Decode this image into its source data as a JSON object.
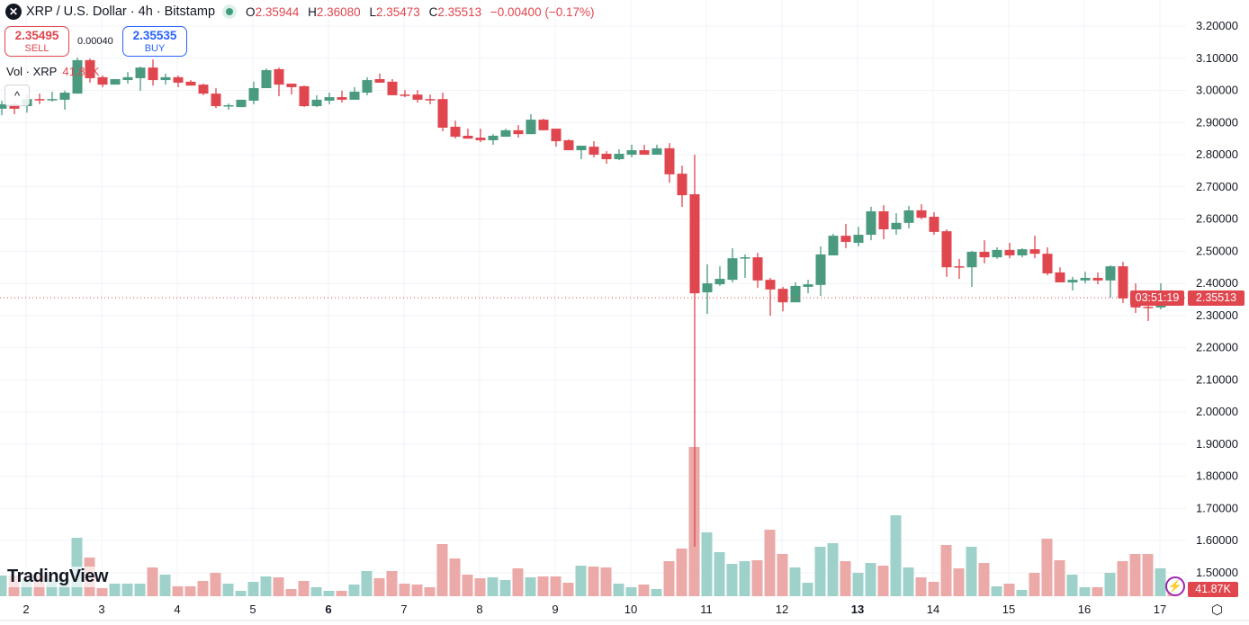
{
  "header": {
    "symbol": "XRP / U.S. Dollar · 4h · Bitstamp",
    "o_label": "O",
    "o": "2.35944",
    "h_label": "H",
    "h": "2.36080",
    "l_label": "L",
    "l": "2.35473",
    "c_label": "C",
    "c": "2.35513",
    "change": "−0.00400 (−0.17%)",
    "logo_icon": "xrp-logo-icon"
  },
  "trade": {
    "sell_price": "2.35495",
    "sell_label": "SELL",
    "spread": "0.00040",
    "buy_price": "2.35535",
    "buy_label": "BUY"
  },
  "volume_legend": {
    "label": "Vol · XRP",
    "value": "41.87K"
  },
  "collapse_glyph": "^",
  "brand": "TradingView",
  "last_price": {
    "price": "2.35513",
    "countdown": "03:51:19"
  },
  "last_volume": "41.87K",
  "colors": {
    "up": "#4a9a80",
    "down": "#e0464e",
    "vol_up": "#9fd1cb",
    "vol_down": "#eba9a8"
  },
  "chart_data": {
    "type": "candlestick",
    "title": "XRP / U.S. Dollar · 4h · Bitstamp",
    "ylim": [
      1.5,
      3.2
    ],
    "y_ticks": [
      "3.20000",
      "3.10000",
      "3.00000",
      "2.90000",
      "2.80000",
      "2.70000",
      "2.60000",
      "2.50000",
      "2.40000",
      "2.30000",
      "2.20000",
      "2.10000",
      "2.00000",
      "1.90000",
      "1.80000",
      "1.70000",
      "1.60000",
      "1.50000"
    ],
    "x_ticks": [
      {
        "label": "2",
        "bold": false
      },
      {
        "label": "3",
        "bold": false
      },
      {
        "label": "4",
        "bold": false
      },
      {
        "label": "5",
        "bold": false
      },
      {
        "label": "6",
        "bold": true
      },
      {
        "label": "7",
        "bold": false
      },
      {
        "label": "8",
        "bold": false
      },
      {
        "label": "9",
        "bold": false
      },
      {
        "label": "10",
        "bold": false
      },
      {
        "label": "11",
        "bold": false
      },
      {
        "label": "12",
        "bold": false
      },
      {
        "label": "13",
        "bold": true
      },
      {
        "label": "14",
        "bold": false
      },
      {
        "label": "15",
        "bold": false
      },
      {
        "label": "16",
        "bold": false
      },
      {
        "label": "17",
        "bold": false
      }
    ],
    "candles_per_day": 6,
    "first_day_candle_index": 2,
    "ohlc_fields": [
      "open",
      "high",
      "low",
      "close"
    ],
    "candles": [
      [
        2.943,
        2.968,
        2.923,
        2.957
      ],
      [
        2.957,
        2.965,
        2.926,
        2.943
      ],
      [
        2.951,
        2.987,
        2.931,
        2.973
      ],
      [
        2.973,
        2.99,
        2.957,
        2.971
      ],
      [
        2.971,
        2.996,
        2.965,
        2.973
      ],
      [
        2.971,
        2.999,
        2.94,
        2.993
      ],
      [
        2.99,
        3.102,
        2.99,
        3.094
      ],
      [
        3.094,
        3.099,
        3.024,
        3.038
      ],
      [
        3.041,
        3.046,
        3.01,
        3.018
      ],
      [
        3.018,
        3.035,
        3.018,
        3.035
      ],
      [
        3.032,
        3.057,
        3.021,
        3.041
      ],
      [
        3.038,
        3.074,
        2.999,
        3.071
      ],
      [
        3.071,
        3.096,
        3.015,
        3.032
      ],
      [
        3.032,
        3.052,
        3.018,
        3.041
      ],
      [
        3.041,
        3.046,
        3.01,
        3.024
      ],
      [
        3.027,
        3.032,
        3.015,
        3.015
      ],
      [
        3.018,
        3.021,
        2.985,
        2.99
      ],
      [
        2.99,
        3.007,
        2.945,
        2.951
      ],
      [
        2.951,
        2.959,
        2.94,
        2.954
      ],
      [
        2.948,
        2.959,
        2.948,
        2.971
      ],
      [
        2.968,
        3.027,
        2.957,
        3.007
      ],
      [
        3.007,
        3.068,
        3.007,
        3.063
      ],
      [
        3.066,
        3.071,
        2.982,
        3.018
      ],
      [
        3.021,
        3.021,
        2.987,
        3.01
      ],
      [
        3.013,
        3.015,
        2.948,
        2.951
      ],
      [
        2.951,
        2.985,
        2.948,
        2.971
      ],
      [
        2.968,
        2.993,
        2.957,
        2.979
      ],
      [
        2.979,
        2.999,
        2.962,
        2.971
      ],
      [
        2.971,
        3.01,
        2.971,
        2.996
      ],
      [
        2.993,
        3.041,
        2.985,
        3.032
      ],
      [
        3.035,
        3.052,
        3.024,
        3.024
      ],
      [
        3.027,
        3.035,
        2.985,
        2.985
      ],
      [
        2.987,
        3.001,
        2.979,
        2.985
      ],
      [
        2.987,
        3.001,
        2.962,
        2.971
      ],
      [
        2.973,
        2.987,
        2.957,
        2.971
      ],
      [
        2.973,
        2.993,
        2.873,
        2.884
      ],
      [
        2.887,
        2.906,
        2.85,
        2.856
      ],
      [
        2.859,
        2.881,
        2.85,
        2.85
      ],
      [
        2.853,
        2.881,
        2.839,
        2.845
      ],
      [
        2.845,
        2.864,
        2.831,
        2.859
      ],
      [
        2.856,
        2.881,
        2.856,
        2.876
      ],
      [
        2.876,
        2.892,
        2.853,
        2.864
      ],
      [
        2.864,
        2.926,
        2.864,
        2.909
      ],
      [
        2.909,
        2.912,
        2.876,
        2.876
      ],
      [
        2.881,
        2.881,
        2.825,
        2.842
      ],
      [
        2.845,
        2.848,
        2.814,
        2.814
      ],
      [
        2.814,
        2.828,
        2.786,
        2.828
      ],
      [
        2.825,
        2.842,
        2.792,
        2.8
      ],
      [
        2.803,
        2.811,
        2.772,
        2.786
      ],
      [
        2.786,
        2.817,
        2.783,
        2.803
      ],
      [
        2.8,
        2.831,
        2.792,
        2.814
      ],
      [
        2.814,
        2.831,
        2.8,
        2.8
      ],
      [
        2.8,
        2.831,
        2.8,
        2.82
      ],
      [
        2.82,
        2.836,
        2.713,
        2.739
      ],
      [
        2.741,
        2.766,
        2.638,
        2.674
      ],
      [
        2.677,
        2.8,
        1.581,
        2.369
      ],
      [
        2.372,
        2.459,
        2.305,
        2.4
      ],
      [
        2.397,
        2.453,
        2.392,
        2.414
      ],
      [
        2.411,
        2.509,
        2.403,
        2.478
      ],
      [
        2.478,
        2.49,
        2.417,
        2.481
      ],
      [
        2.481,
        2.495,
        2.386,
        2.409
      ],
      [
        2.411,
        2.417,
        2.299,
        2.381
      ],
      [
        2.383,
        2.389,
        2.313,
        2.341
      ],
      [
        2.341,
        2.403,
        2.341,
        2.392
      ],
      [
        2.389,
        2.411,
        2.369,
        2.397
      ],
      [
        2.395,
        2.515,
        2.361,
        2.49
      ],
      [
        2.487,
        2.554,
        2.487,
        2.548
      ],
      [
        2.548,
        2.585,
        2.509,
        2.529
      ],
      [
        2.526,
        2.576,
        2.515,
        2.551
      ],
      [
        2.551,
        2.638,
        2.534,
        2.624
      ],
      [
        2.624,
        2.643,
        2.537,
        2.568
      ],
      [
        2.568,
        2.618,
        2.551,
        2.588
      ],
      [
        2.588,
        2.641,
        2.571,
        2.627
      ],
      [
        2.627,
        2.646,
        2.599,
        2.604
      ],
      [
        2.607,
        2.621,
        2.551,
        2.56
      ],
      [
        2.562,
        2.568,
        2.42,
        2.45
      ],
      [
        2.453,
        2.476,
        2.414,
        2.45
      ],
      [
        2.45,
        2.501,
        2.389,
        2.498
      ],
      [
        2.498,
        2.534,
        2.462,
        2.481
      ],
      [
        2.481,
        2.512,
        2.476,
        2.504
      ],
      [
        2.504,
        2.526,
        2.478,
        2.487
      ],
      [
        2.487,
        2.509,
        2.481,
        2.506
      ],
      [
        2.506,
        2.548,
        2.478,
        2.492
      ],
      [
        2.492,
        2.512,
        2.425,
        2.431
      ],
      [
        2.434,
        2.45,
        2.403,
        2.403
      ],
      [
        2.403,
        2.42,
        2.378,
        2.411
      ],
      [
        2.409,
        2.436,
        2.4,
        2.417
      ],
      [
        2.417,
        2.434,
        2.397,
        2.409
      ],
      [
        2.409,
        2.456,
        2.355,
        2.453
      ],
      [
        2.453,
        2.467,
        2.339,
        2.353
      ],
      [
        2.355,
        2.4,
        2.308,
        2.325
      ],
      [
        2.327,
        2.336,
        2.283,
        2.325
      ],
      [
        2.325,
        2.4,
        2.319,
        2.358
      ],
      [
        2.35944,
        2.3608,
        2.35473,
        2.35513
      ]
    ],
    "volume_k": [
      138,
      138,
      114,
      138,
      114,
      114,
      390,
      258,
      54,
      84,
      84,
      84,
      192,
      144,
      66,
      66,
      102,
      156,
      84,
      36,
      96,
      132,
      126,
      48,
      102,
      60,
      36,
      36,
      78,
      168,
      120,
      168,
      84,
      78,
      60,
      348,
      252,
      144,
      120,
      126,
      108,
      186,
      126,
      132,
      132,
      90,
      204,
      198,
      192,
      84,
      60,
      78,
      48,
      234,
      318,
      996,
      426,
      294,
      216,
      234,
      240,
      444,
      282,
      192,
      90,
      330,
      354,
      234,
      156,
      222,
      204,
      540,
      192,
      126,
      96,
      342,
      186,
      330,
      222,
      66,
      84,
      42,
      156,
      384,
      240,
      144,
      60,
      60,
      156,
      234,
      282,
      282,
      186,
      41.87
    ],
    "last_price": 2.35513
  }
}
